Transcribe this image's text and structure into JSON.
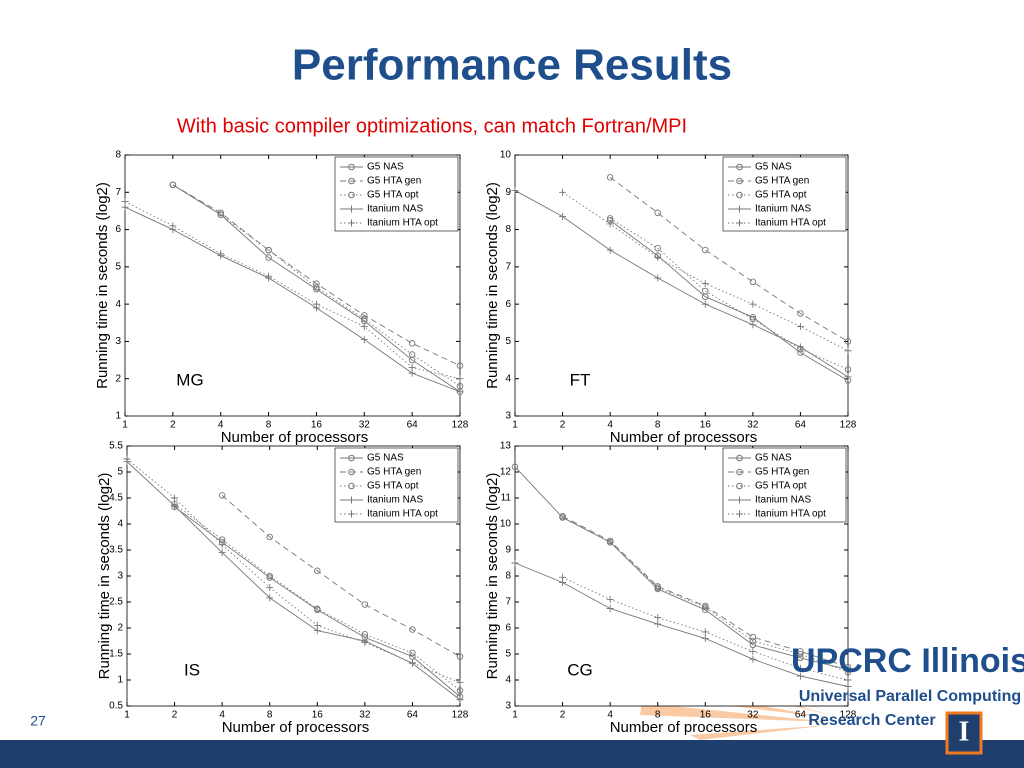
{
  "slide": {
    "title": "Performance Results",
    "subtitle": "With basic compiler optimizations, can match Fortran/MPI",
    "page_number": "27",
    "logo": {
      "line1": "UPCRC Illinois",
      "line2": "Universal Parallel Computing",
      "line3": "Research Center",
      "icon": "I"
    }
  },
  "chart_data": [
    {
      "type": "line",
      "annotation": "MG",
      "xlabel": "Number of processors",
      "ylabel": "Running time in seconds (log2)",
      "xscale": "log",
      "xbase": 2,
      "x": [
        1,
        2,
        4,
        8,
        16,
        32,
        64,
        128
      ],
      "xlim": [
        1,
        128
      ],
      "xticks": [
        1,
        2,
        4,
        8,
        16,
        32,
        64,
        128
      ],
      "ylim": [
        1,
        8
      ],
      "yticks": [
        1,
        2,
        3,
        4,
        5,
        6,
        7,
        8
      ],
      "legend": "upper right",
      "series": [
        {
          "name": "G5 NAS",
          "color": "#777777",
          "dash": "solid",
          "marker": "o",
          "values": [
            null,
            7.2,
            6.4,
            5.25,
            4.4,
            3.55,
            2.5,
            1.65
          ]
        },
        {
          "name": "G5 HTA gen",
          "color": "#777777",
          "dash": "dashed",
          "marker": "o",
          "values": [
            null,
            7.2,
            6.45,
            5.45,
            4.55,
            3.7,
            2.95,
            2.35
          ]
        },
        {
          "name": "G5 HTA opt",
          "color": "#777777",
          "dash": "dotted",
          "marker": "o",
          "values": [
            null,
            7.2,
            6.4,
            5.45,
            4.45,
            3.6,
            2.65,
            1.8
          ]
        },
        {
          "name": "Itanium NAS",
          "color": "#777777",
          "dash": "solid",
          "marker": "+",
          "values": [
            6.6,
            6.0,
            5.3,
            4.7,
            3.9,
            3.05,
            2.15,
            1.65
          ]
        },
        {
          "name": "Itanium HTA opt",
          "color": "#777777",
          "dash": "dotted",
          "marker": "+",
          "values": [
            6.75,
            6.1,
            5.35,
            4.75,
            4.0,
            3.4,
            2.3,
            2.0
          ]
        }
      ]
    },
    {
      "type": "line",
      "annotation": "FT",
      "xlabel": "Number of processors",
      "ylabel": "Running time in seconds (log2)",
      "xscale": "log",
      "xbase": 2,
      "x": [
        1,
        2,
        4,
        8,
        16,
        32,
        64,
        128
      ],
      "xlim": [
        1,
        128
      ],
      "xticks": [
        1,
        2,
        4,
        8,
        16,
        32,
        64,
        128
      ],
      "ylim": [
        3,
        10
      ],
      "yticks": [
        3,
        4,
        5,
        6,
        7,
        8,
        9,
        10
      ],
      "legend": "upper right",
      "series": [
        {
          "name": "G5 NAS",
          "color": "#777777",
          "dash": "solid",
          "marker": "o",
          "values": [
            null,
            null,
            8.25,
            7.3,
            6.2,
            5.65,
            4.7,
            3.95
          ]
        },
        {
          "name": "G5 HTA gen",
          "color": "#777777",
          "dash": "dashed",
          "marker": "o",
          "values": [
            null,
            null,
            9.4,
            8.45,
            7.45,
            6.6,
            5.75,
            5.0
          ]
        },
        {
          "name": "G5 HTA opt",
          "color": "#777777",
          "dash": "dotted",
          "marker": "o",
          "values": [
            null,
            null,
            8.3,
            7.5,
            6.35,
            5.6,
            4.8,
            4.25
          ]
        },
        {
          "name": "Itanium NAS",
          "color": "#777777",
          "dash": "solid",
          "marker": "+",
          "values": [
            9.05,
            8.35,
            7.45,
            6.7,
            6.0,
            5.45,
            4.85,
            4.05
          ]
        },
        {
          "name": "Itanium HTA opt",
          "color": "#777777",
          "dash": "dotted",
          "marker": "+",
          "values": [
            null,
            9.0,
            8.15,
            7.25,
            6.55,
            6.0,
            5.4,
            4.75
          ]
        }
      ]
    },
    {
      "type": "line",
      "annotation": "IS",
      "xlabel": "Number of processors",
      "ylabel": "Running time in seconds (log2)",
      "xscale": "log",
      "xbase": 2,
      "x": [
        1,
        2,
        4,
        8,
        16,
        32,
        64,
        128
      ],
      "xlim": [
        1,
        128
      ],
      "xticks": [
        1,
        2,
        4,
        8,
        16,
        32,
        64,
        128
      ],
      "ylim": [
        0.5,
        5.5
      ],
      "yticks": [
        0.5,
        1,
        1.5,
        2,
        2.5,
        3,
        3.5,
        4,
        4.5,
        5,
        5.5
      ],
      "legend": "upper right",
      "series": [
        {
          "name": "G5 NAS",
          "color": "#777777",
          "dash": "solid",
          "marker": "o",
          "values": [
            null,
            4.33,
            3.65,
            2.97,
            2.35,
            1.82,
            1.45,
            0.68
          ]
        },
        {
          "name": "G5 HTA gen",
          "color": "#777777",
          "dash": "dashed",
          "marker": "o",
          "values": [
            null,
            null,
            4.55,
            3.75,
            3.1,
            2.45,
            1.97,
            1.45
          ]
        },
        {
          "name": "G5 HTA opt",
          "color": "#777777",
          "dash": "dotted",
          "marker": "o",
          "values": [
            null,
            4.38,
            3.7,
            3.0,
            2.37,
            1.88,
            1.52,
            0.8
          ]
        },
        {
          "name": "Itanium NAS",
          "color": "#777777",
          "dash": "solid",
          "marker": "+",
          "values": [
            5.2,
            4.35,
            3.45,
            2.58,
            1.95,
            1.75,
            1.32,
            0.62
          ]
        },
        {
          "name": "Itanium HTA opt",
          "color": "#777777",
          "dash": "dotted",
          "marker": "+",
          "values": [
            5.25,
            4.5,
            3.6,
            2.78,
            2.05,
            1.72,
            1.33,
            0.95
          ]
        }
      ]
    },
    {
      "type": "line",
      "annotation": "CG",
      "xlabel": "Number of processors",
      "ylabel": "Running time in seconds (log2)",
      "xscale": "log",
      "xbase": 2,
      "x": [
        1,
        2,
        4,
        8,
        16,
        32,
        64,
        128
      ],
      "xlim": [
        1,
        128
      ],
      "xticks": [
        1,
        2,
        4,
        8,
        16,
        32,
        64,
        128
      ],
      "ylim": [
        3,
        13
      ],
      "yticks": [
        3,
        4,
        5,
        6,
        7,
        8,
        9,
        10,
        11,
        12,
        13
      ],
      "legend": "upper right",
      "series": [
        {
          "name": "G5 NAS",
          "color": "#777777",
          "dash": "solid",
          "marker": "o",
          "values": [
            12.2,
            10.25,
            9.3,
            7.5,
            6.7,
            5.35,
            4.85,
            4.4
          ]
        },
        {
          "name": "G5 HTA gen",
          "color": "#777777",
          "dash": "dashed",
          "marker": "o",
          "values": [
            null,
            10.3,
            9.35,
            7.6,
            6.85,
            5.65,
            5.1,
            4.5
          ]
        },
        {
          "name": "G5 HTA opt",
          "color": "#777777",
          "dash": "dotted",
          "marker": "o",
          "values": [
            null,
            10.25,
            9.3,
            7.55,
            6.8,
            5.5,
            5.0,
            4.3
          ]
        },
        {
          "name": "Itanium NAS",
          "color": "#777777",
          "dash": "solid",
          "marker": "+",
          "values": [
            8.5,
            7.75,
            6.75,
            6.15,
            5.6,
            4.8,
            4.15,
            3.75
          ]
        },
        {
          "name": "Itanium HTA opt",
          "color": "#777777",
          "dash": "dotted",
          "marker": "+",
          "values": [
            null,
            7.95,
            7.1,
            6.4,
            5.85,
            5.1,
            4.45,
            4.0
          ]
        }
      ]
    }
  ]
}
